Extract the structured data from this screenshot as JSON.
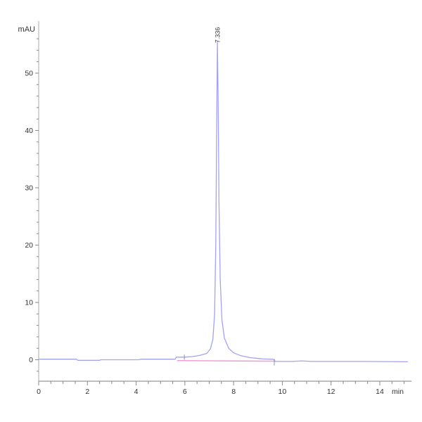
{
  "chart_data": {
    "type": "line",
    "title": "",
    "ylabel": "mAU",
    "xlabel": "min",
    "x_ticks": [
      0,
      2,
      4,
      6,
      8,
      10,
      12,
      14
    ],
    "x_minor_step": 0.5,
    "x_minor_range": [
      0,
      15
    ],
    "y_ticks": [
      0,
      10,
      20,
      30,
      40,
      50
    ],
    "y_minor_step": 2,
    "y_minor_range": [
      -2,
      56
    ],
    "xlim": [
      0,
      15.3
    ],
    "ylim": [
      -3.8,
      59.1
    ],
    "grid": false,
    "legend": "none",
    "series": [
      {
        "name": "detector-signal",
        "color": "#a3a3ef",
        "points": [
          [
            0.0,
            0.1
          ],
          [
            1.55,
            0.1
          ],
          [
            1.6,
            -0.1
          ],
          [
            2.5,
            -0.1
          ],
          [
            2.55,
            0.0
          ],
          [
            4.1,
            0.0
          ],
          [
            4.2,
            0.1
          ],
          [
            5.6,
            0.1
          ],
          [
            5.65,
            0.45
          ],
          [
            5.98,
            0.45
          ],
          [
            6.3,
            0.55
          ],
          [
            6.6,
            0.75
          ],
          [
            6.9,
            1.1
          ],
          [
            7.05,
            1.9
          ],
          [
            7.15,
            3.6
          ],
          [
            7.22,
            8.0
          ],
          [
            7.27,
            20.0
          ],
          [
            7.3,
            38.0
          ],
          [
            7.336,
            55.5
          ],
          [
            7.37,
            44.0
          ],
          [
            7.4,
            28.0
          ],
          [
            7.45,
            14.0
          ],
          [
            7.52,
            7.0
          ],
          [
            7.62,
            3.8
          ],
          [
            7.8,
            2.0
          ],
          [
            8.0,
            1.2
          ],
          [
            8.3,
            0.7
          ],
          [
            8.7,
            0.35
          ],
          [
            9.2,
            0.15
          ],
          [
            9.6,
            0.08
          ],
          [
            9.67,
            0.05
          ],
          [
            9.7,
            -0.3
          ],
          [
            10.4,
            -0.3
          ],
          [
            10.8,
            -0.2
          ],
          [
            11.2,
            -0.3
          ],
          [
            13.4,
            -0.3
          ],
          [
            15.15,
            -0.35
          ]
        ]
      }
    ],
    "integration_baseline": {
      "color": "#ef9ad6",
      "from": [
        5.68,
        -0.15
      ],
      "to": [
        9.67,
        -0.25
      ]
    },
    "peak_start_marker": {
      "x": 5.98,
      "y_from": 0.0,
      "y_to": 0.9
    },
    "peak_end_marker": {
      "x": 9.67,
      "y_from": 0.1,
      "y_to": -1.0
    },
    "peaks": [
      {
        "retention_time_label": "7.336",
        "x": 7.336,
        "apex_mAU": 55.5
      }
    ],
    "axis_color": "#a8a8a8",
    "tick_color": "#8a8a8a",
    "tick_label_color": "#333333",
    "peak_label_color": "#3a3a3a",
    "background": "#ffffff"
  }
}
